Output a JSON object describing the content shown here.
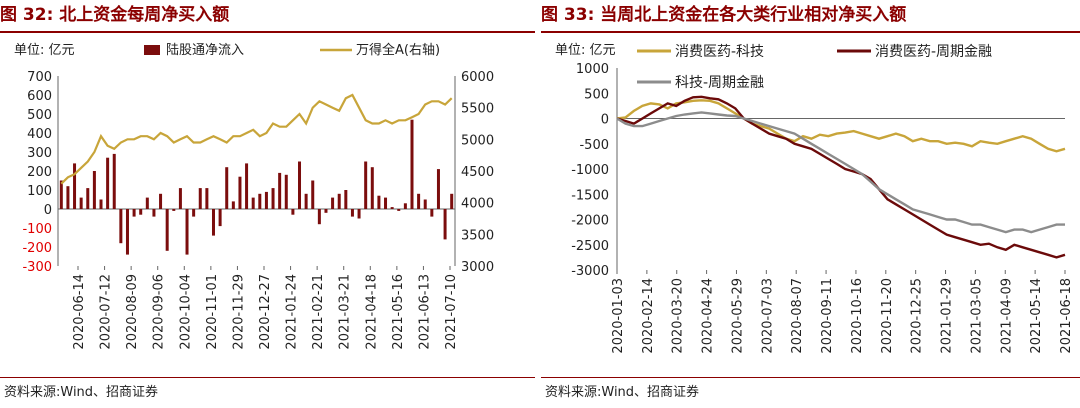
{
  "left": {
    "figure_label": "图 32:",
    "title": "北上资金每周净买入额",
    "source": "资料来源:Wind、招商证券",
    "colors": {
      "bar": "#7b0d0d",
      "line": "#c8a53a",
      "title": "#8b0000"
    }
  },
  "right": {
    "figure_label": "图 33:",
    "title": "当周北上资金在各大类行业相对净买入额",
    "source": "资料来源:Wind、招商证券",
    "colors": {
      "series1": "#c8a53a",
      "series2": "#6b0a0a",
      "series3": "#8c8c8c",
      "title": "#8b0000"
    }
  },
  "chart_data": [
    {
      "type": "bar",
      "unit_label": "单位: 亿元",
      "y_left_lim": [
        -300,
        700
      ],
      "y_left_ticks": [
        -300,
        -200,
        -100,
        0,
        100,
        200,
        300,
        400,
        500,
        600,
        700
      ],
      "y_right_lim": [
        3000,
        6000
      ],
      "y_right_ticks": [
        3000,
        3500,
        4000,
        4500,
        5000,
        5500,
        6000
      ],
      "x_tick_labels": [
        "2020-06-14",
        "2020-07-12",
        "2020-08-09",
        "2020-09-06",
        "2020-10-04",
        "2020-11-01",
        "2020-11-29",
        "2020-12-27",
        "2021-01-24",
        "2021-02-21",
        "2021-03-21",
        "2021-04-18",
        "2021-05-16",
        "2021-06-13",
        "2021-07-10"
      ],
      "legend_position": "top",
      "series": [
        {
          "name": "陆股通净流入",
          "kind": "bar",
          "axis": "left",
          "values": [
            150,
            120,
            240,
            60,
            110,
            200,
            50,
            270,
            290,
            -180,
            -240,
            -40,
            -30,
            60,
            -40,
            80,
            -220,
            -10,
            110,
            -240,
            -40,
            110,
            110,
            -140,
            -90,
            220,
            40,
            170,
            240,
            60,
            80,
            90,
            110,
            190,
            180,
            -30,
            250,
            80,
            150,
            -80,
            -20,
            60,
            80,
            100,
            -40,
            -50,
            250,
            220,
            70,
            60,
            10,
            -10,
            30,
            470,
            80,
            50,
            -40,
            210,
            -160,
            80
          ]
        },
        {
          "name": "万得全A(右轴)",
          "kind": "line",
          "axis": "right",
          "values": [
            4300,
            4400,
            4450,
            4550,
            4650,
            4800,
            5050,
            4900,
            4850,
            4950,
            5000,
            5000,
            5050,
            5050,
            5000,
            5100,
            5050,
            4950,
            5000,
            5050,
            4950,
            4950,
            5000,
            5050,
            5000,
            4950,
            5050,
            5050,
            5100,
            5150,
            5050,
            5100,
            5250,
            5200,
            5200,
            5300,
            5400,
            5250,
            5500,
            5600,
            5550,
            5500,
            5450,
            5650,
            5700,
            5500,
            5300,
            5250,
            5250,
            5300,
            5250,
            5300,
            5300,
            5350,
            5400,
            5550,
            5600,
            5600,
            5550,
            5650
          ]
        }
      ]
    },
    {
      "type": "line",
      "unit_label": "单位: 亿元",
      "ylim": [
        -3000,
        1000
      ],
      "y_ticks": [
        -3000,
        -2500,
        -2000,
        -1500,
        -1000,
        -500,
        0,
        500,
        1000
      ],
      "x_tick_labels": [
        "2020-01-03",
        "2020-02-14",
        "2020-03-20",
        "2020-04-24",
        "2020-05-29",
        "2020-07-03",
        "2020-08-07",
        "2020-09-11",
        "2020-10-16",
        "2020-11-20",
        "2020-12-25",
        "2021-01-29",
        "2021-03-05",
        "2021-04-09",
        "2021-05-14",
        "2021-06-18"
      ],
      "legend_position": "top",
      "series": [
        {
          "name": "消费医药-科技",
          "values": [
            0,
            20,
            150,
            250,
            300,
            280,
            200,
            300,
            320,
            350,
            360,
            350,
            300,
            200,
            100,
            0,
            -100,
            -150,
            -200,
            -300,
            -400,
            -450,
            -350,
            -400,
            -320,
            -350,
            -300,
            -280,
            -250,
            -300,
            -350,
            -400,
            -350,
            -300,
            -350,
            -450,
            -400,
            -450,
            -450,
            -500,
            -480,
            -500,
            -550,
            -450,
            -480,
            -500,
            -450,
            -400,
            -350,
            -400,
            -500,
            -600,
            -650,
            -600
          ]
        },
        {
          "name": "消费医药-周期金融",
          "values": [
            0,
            -50,
            -100,
            0,
            100,
            200,
            300,
            250,
            350,
            420,
            430,
            400,
            380,
            300,
            200,
            0,
            -100,
            -200,
            -300,
            -350,
            -400,
            -500,
            -550,
            -600,
            -700,
            -800,
            -900,
            -1000,
            -1050,
            -1100,
            -1200,
            -1400,
            -1600,
            -1700,
            -1800,
            -1900,
            -2000,
            -2100,
            -2200,
            -2300,
            -2350,
            -2400,
            -2450,
            -2500,
            -2480,
            -2550,
            -2600,
            -2500,
            -2550,
            -2600,
            -2650,
            -2700,
            -2750,
            -2700
          ]
        },
        {
          "name": "科技-周期金融",
          "values": [
            0,
            -100,
            -150,
            -150,
            -100,
            -50,
            0,
            50,
            80,
            100,
            120,
            100,
            80,
            60,
            50,
            0,
            -50,
            -100,
            -150,
            -200,
            -250,
            -300,
            -400,
            -500,
            -600,
            -700,
            -800,
            -900,
            -1000,
            -1100,
            -1250,
            -1400,
            -1500,
            -1600,
            -1700,
            -1800,
            -1850,
            -1900,
            -1950,
            -2000,
            -2000,
            -2050,
            -2100,
            -2100,
            -2150,
            -2200,
            -2250,
            -2200,
            -2200,
            -2250,
            -2200,
            -2150,
            -2100,
            -2100
          ]
        }
      ]
    }
  ]
}
